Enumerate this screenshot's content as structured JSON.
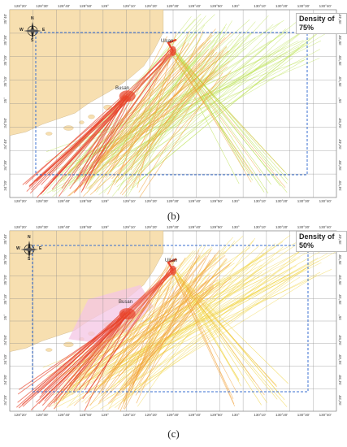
{
  "panels": [
    {
      "id": "b",
      "density_label": "Density of 75%",
      "caption": "(b)",
      "cities": [
        "Ulsan",
        "Busan"
      ],
      "compass": [
        "N",
        "S",
        "W",
        "E"
      ],
      "x_ticks_top": [
        "128°20'",
        "128°30'",
        "128°40'",
        "128°50'",
        "129°",
        "129°10'",
        "129°20'",
        "129°30'",
        "129°40'",
        "129°50'",
        "130°",
        "130°10'",
        "130°20'",
        "130°30'",
        "130°40'"
      ],
      "x_ticks_bottom": [
        "128°20'",
        "128°30'",
        "128°40'",
        "128°50'",
        "129°",
        "129°10'",
        "129°20'",
        "129°30'",
        "129°40'",
        "129°50'",
        "130°",
        "130°10'",
        "130°20'",
        "130°30'",
        "130°40'"
      ],
      "y_ticks": [
        "35°40'",
        "35°30'",
        "35°20'",
        "35°10'",
        "35°",
        "34°50'",
        "34°40'",
        "34°30'",
        "34°20'"
      ]
    },
    {
      "id": "c",
      "density_label": "Density of 50%",
      "caption": "(c)",
      "cities": [
        "Ulsan",
        "Busan"
      ],
      "compass": [
        "N",
        "S",
        "W",
        "E"
      ],
      "x_ticks_top": [
        "128°20'",
        "128°30'",
        "128°40'",
        "128°50'",
        "129°",
        "129°10'",
        "129°20'",
        "129°30'",
        "129°40'",
        "129°50'",
        "130°",
        "130°10'",
        "130°20'",
        "130°30'",
        "130°40'"
      ],
      "x_ticks_bottom": [
        "128°20'",
        "128°30'",
        "128°40'",
        "128°50'",
        "129°",
        "129°10'",
        "129°20'",
        "129°30'",
        "129°40'",
        "129°50'",
        "130°",
        "130°10'",
        "130°20'",
        "130°30'",
        "130°40'"
      ],
      "y_ticks": [
        "35°40'",
        "35°30'",
        "35°20'",
        "35°10'",
        "35°",
        "34°50'",
        "34°40'",
        "34°30'",
        "34°20'"
      ]
    }
  ],
  "colors": {
    "land": "#f7dfb0",
    "sea": "#ffffff",
    "grid": "#8a8a8a",
    "frame": "#3a6fd0",
    "route_dense": "#e8432a",
    "route_mid": "#f2a23a",
    "route_light_b": "#b8e04a",
    "route_light_c": "#f0d23a",
    "pink_area": "#f4c6e4"
  }
}
